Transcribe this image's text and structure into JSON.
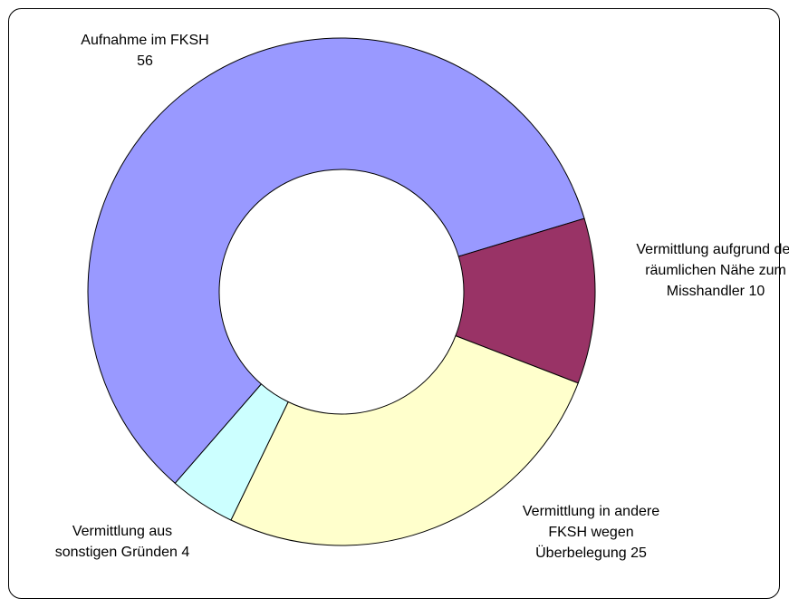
{
  "chart_data": {
    "type": "donut",
    "categories": [
      "Aufnahme im FKSH",
      "Vermittlung aufgrund der räumlichen Nähe zum Misshandler",
      "Vermittlung in andere FKSH wegen Überbelegung",
      "Vermittlung aus sonstigen Gründen"
    ],
    "values": [
      56,
      10,
      25,
      4
    ],
    "colors": [
      "#9999ff",
      "#993366",
      "#ffffcc",
      "#ccffff"
    ]
  }
}
